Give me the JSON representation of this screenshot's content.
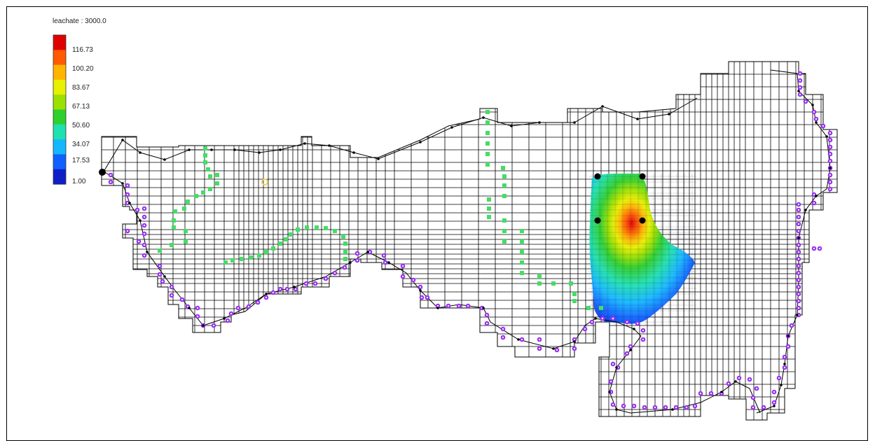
{
  "legend": {
    "title": "leachate : 3000.0",
    "labels": [
      "116.73",
      "100.20",
      "83.67",
      "67.13",
      "50.60",
      "34.07",
      "17.53",
      "1.00"
    ],
    "colors": [
      "#e00000",
      "#ff5a00",
      "#ffb400",
      "#e8f000",
      "#9be000",
      "#2ed02e",
      "#1fe0b0",
      "#15b8ff",
      "#1060ff",
      "#0f1fc8"
    ]
  },
  "colors": {
    "frame": "#000000",
    "grid": "#000000",
    "boundary_marker": "#9b34f0",
    "interior_marker": "#44dd66",
    "well_marker": "#000000",
    "river_line": "#000000"
  },
  "plume": {
    "peak_value": "116.73"
  }
}
